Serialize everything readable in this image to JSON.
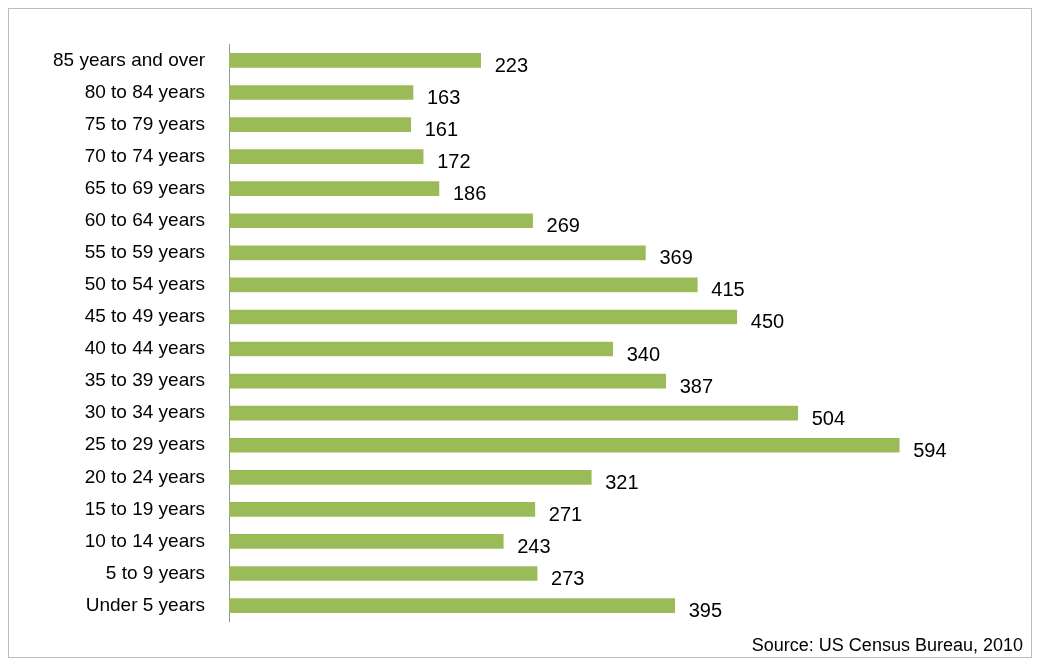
{
  "chart_data": {
    "type": "bar",
    "orientation": "horizontal",
    "categories": [
      "85 years and over",
      "80 to 84 years",
      "75 to 79 years",
      "70 to 74 years",
      "65 to 69 years",
      "60 to 64 years",
      "55 to 59 years",
      "50 to 54 years",
      "45 to 49 years",
      "40 to 44 years",
      "35 to 39 years",
      "30 to 34 years",
      "25 to 29 years",
      "20 to 24 years",
      "15 to 19 years",
      "10 to 14 years",
      "5 to 9 years",
      "Under 5 years"
    ],
    "values": [
      223,
      163,
      161,
      172,
      186,
      269,
      369,
      415,
      450,
      340,
      387,
      504,
      594,
      321,
      271,
      243,
      273,
      395
    ],
    "color": "#9bbb59",
    "data_labels": true,
    "annotations": [
      "Source: US Census Bureau, 2010"
    ]
  }
}
